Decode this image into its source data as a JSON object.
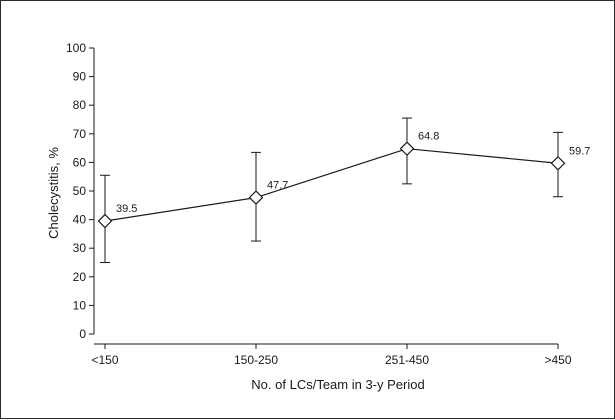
{
  "chart_data": {
    "type": "line",
    "xlabel": "No. of LCs/Team in 3-y Period",
    "ylabel": "Cholecystitis, %",
    "ylim": [
      0,
      100
    ],
    "yticks": [
      0,
      10,
      20,
      30,
      40,
      50,
      60,
      70,
      80,
      90,
      100
    ],
    "categories": [
      "<150",
      "150-250",
      "251-450",
      ">450"
    ],
    "series": [
      {
        "values": [
          39.5,
          47.7,
          64.8,
          59.7
        ],
        "labels": [
          "39.5",
          "47.7",
          "64.8",
          "59.7"
        ],
        "error_low": [
          25,
          32.5,
          52.5,
          48
        ],
        "error_high": [
          55.5,
          63.5,
          75.5,
          70.5
        ]
      }
    ],
    "marker": "diamond",
    "legend": "none",
    "grid": false
  }
}
